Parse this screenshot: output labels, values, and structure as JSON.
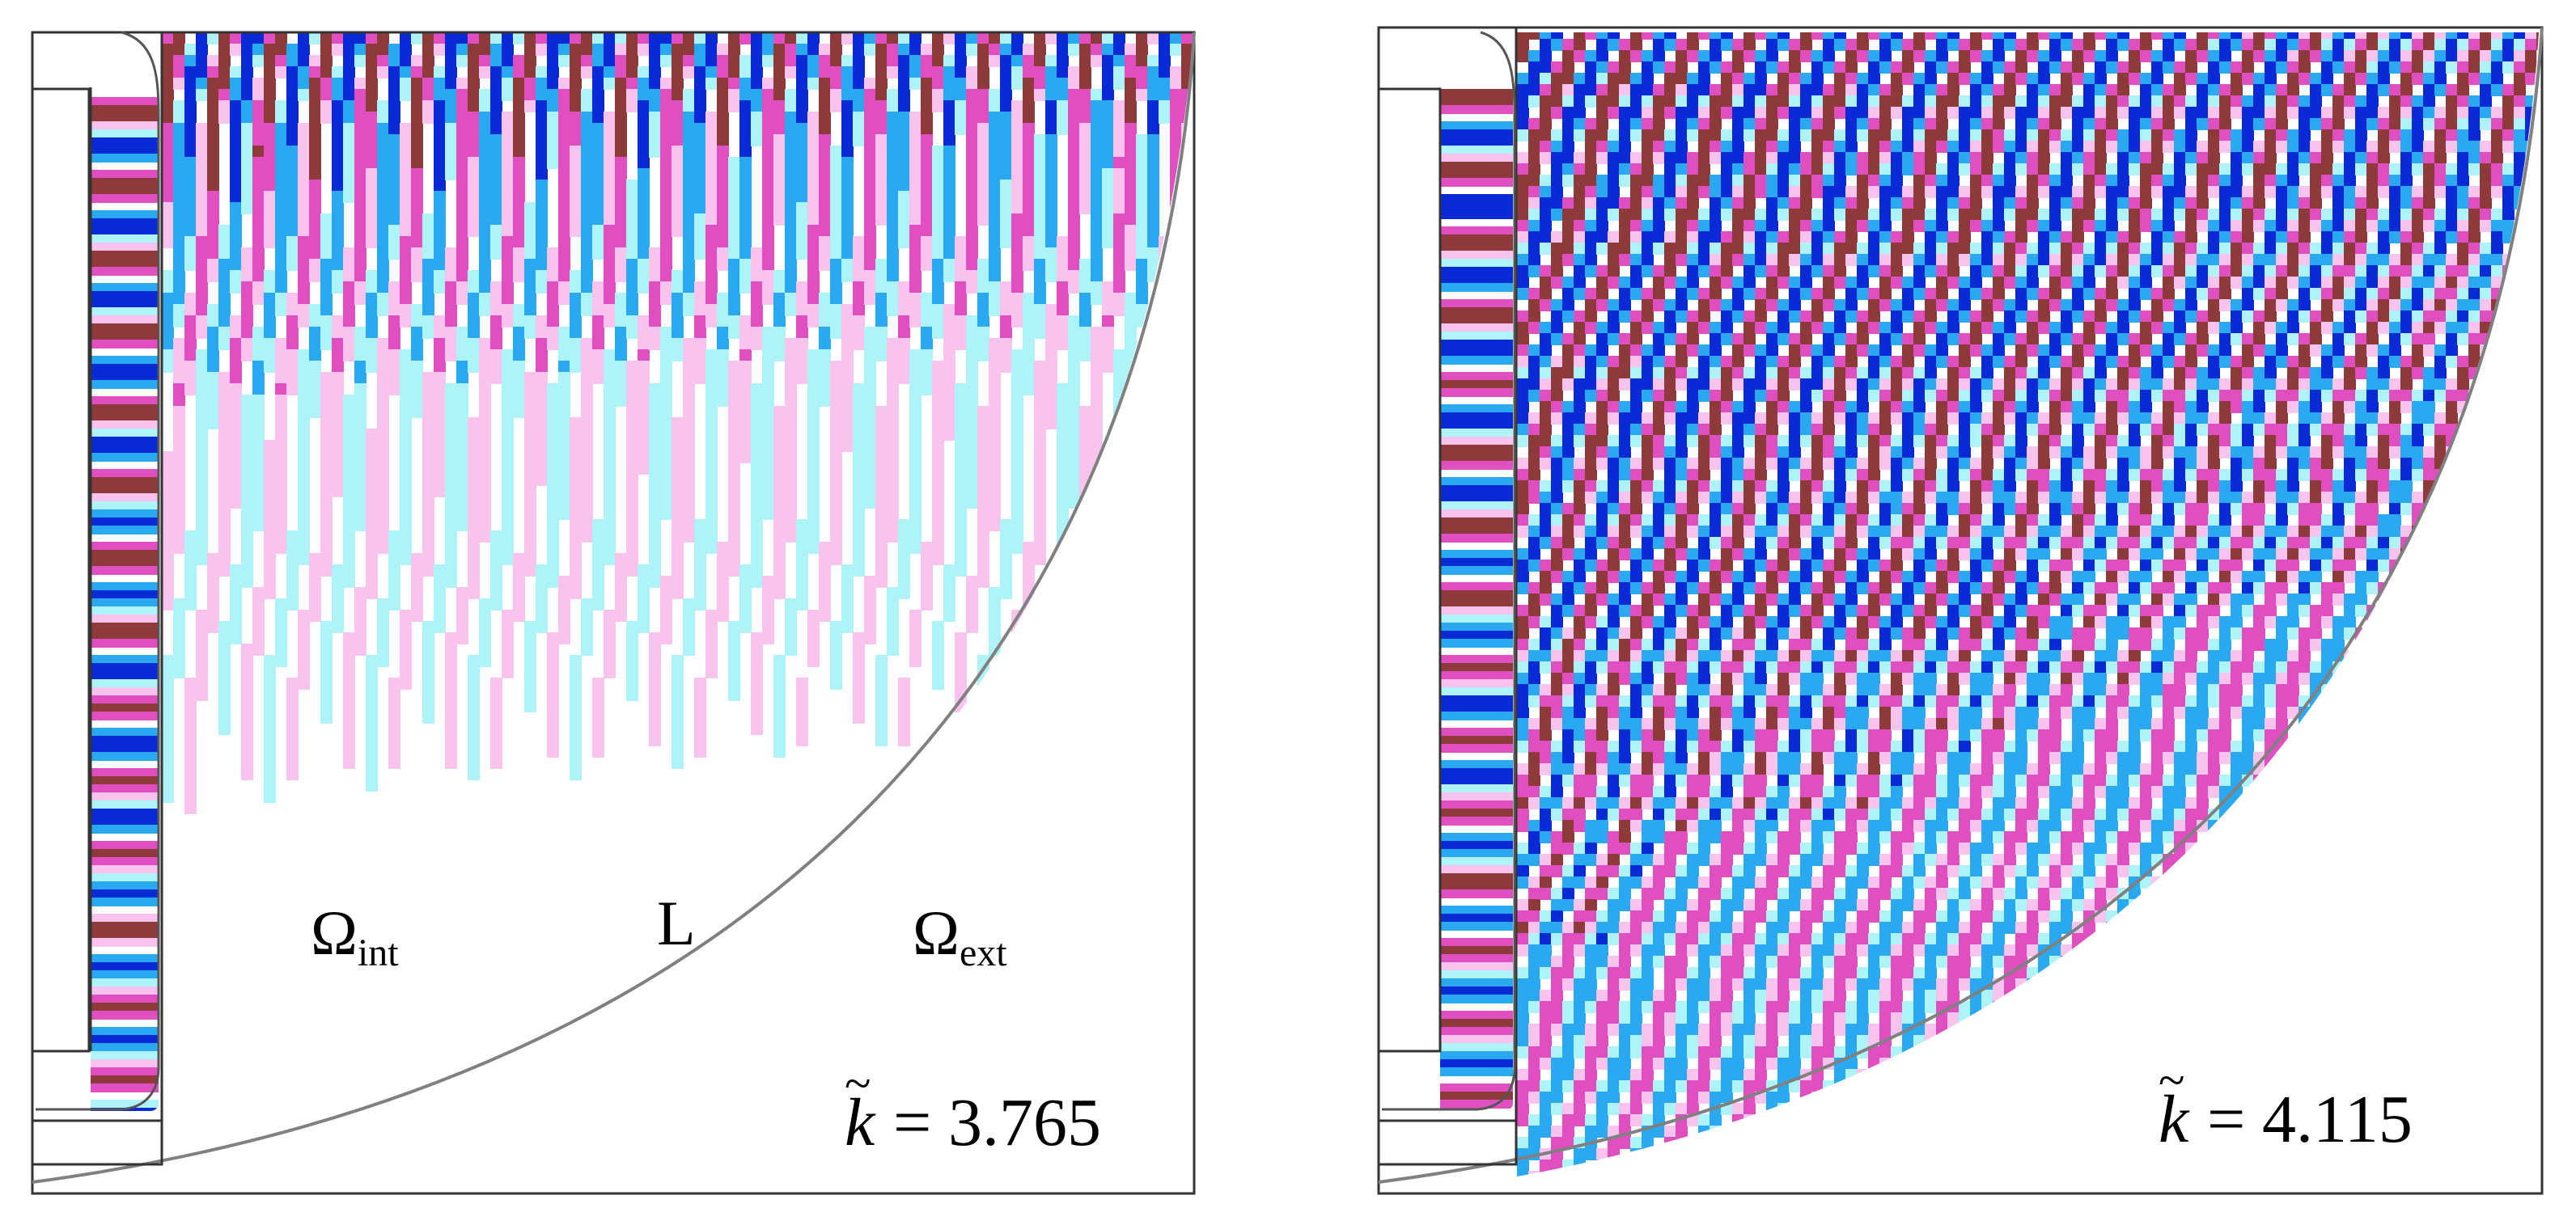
{
  "colors": {
    "frame": "#333333",
    "domain_boundary": "#808080",
    "positive_strong": "#8e3a3a",
    "positive": "#e04fbf",
    "positive_light": "#f8c4ee",
    "negative_strong": "#0a2ad6",
    "negative": "#2aa8f0",
    "negative_light": "#aef3f8",
    "background": "#ffffff"
  },
  "panels": [
    {
      "id": "left",
      "k_symbol": "k",
      "k_tilde": "~",
      "k_equals": "=",
      "k_value": "3.765",
      "region_labels": {
        "interior_symbol": "Ω",
        "interior_subscript": "int",
        "interface": "L",
        "exterior_symbol": "Ω",
        "exterior_subscript": "ext"
      }
    },
    {
      "id": "right",
      "k_symbol": "k",
      "k_tilde": "~",
      "k_equals": "=",
      "k_value": "4.115"
    }
  ]
}
